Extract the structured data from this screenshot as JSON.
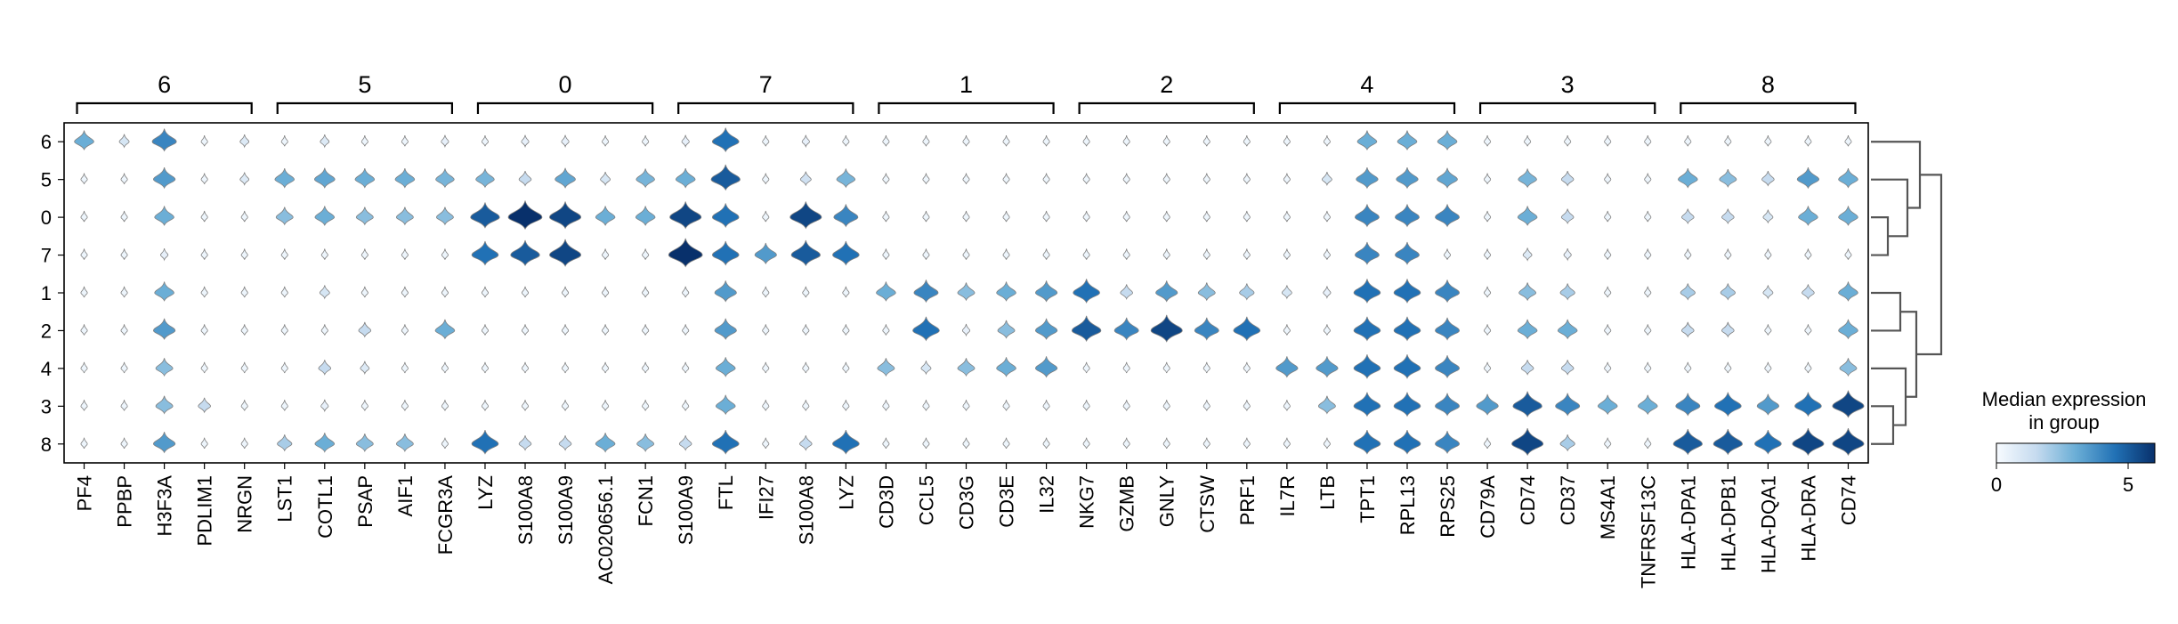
{
  "chart_data": {
    "type": "stacked-violin",
    "gene_groups": [
      {
        "name": "6",
        "genes": [
          "PF4",
          "PPBP",
          "H3F3A",
          "PDLIM1",
          "NRGN"
        ]
      },
      {
        "name": "5",
        "genes": [
          "LST1",
          "COTL1",
          "PSAP",
          "AIF1",
          "FCGR3A"
        ]
      },
      {
        "name": "0",
        "genes": [
          "LYZ",
          "S100A8",
          "S100A9",
          "AC020656.1",
          "FCN1"
        ]
      },
      {
        "name": "7",
        "genes": [
          "S100A9",
          "FTL",
          "IFI27",
          "S100A8",
          "LYZ"
        ]
      },
      {
        "name": "1",
        "genes": [
          "CD3D",
          "CCL5",
          "CD3G",
          "CD3E",
          "IL32"
        ]
      },
      {
        "name": "2",
        "genes": [
          "NKG7",
          "GZMB",
          "GNLY",
          "CTSW",
          "PRF1"
        ]
      },
      {
        "name": "4",
        "genes": [
          "IL7R",
          "LTB",
          "TPT1",
          "RPL13",
          "RPS25"
        ]
      },
      {
        "name": "3",
        "genes": [
          "CD79A",
          "CD74",
          "CD37",
          "MS4A1",
          "TNFRSF13C"
        ]
      },
      {
        "name": "8",
        "genes": [
          "HLA-DPA1",
          "HLA-DPB1",
          "HLA-DQA1",
          "HLA-DRA",
          "CD74"
        ]
      }
    ],
    "clusters": [
      "6",
      "5",
      "0",
      "7",
      "1",
      "2",
      "4",
      "3",
      "8"
    ],
    "median_expression": [
      [
        3.0,
        1.0,
        4.0,
        0.3,
        0.8,
        0.3,
        0.8,
        0.3,
        0.3,
        0.5,
        0.3,
        0.5,
        0.5,
        0.3,
        0.3,
        0.5,
        4.5,
        0.3,
        0.5,
        0.3,
        0.3,
        0.3,
        0.3,
        0.3,
        0.3,
        0.3,
        0.3,
        0.3,
        0.3,
        0.3,
        0.3,
        0.3,
        3.0,
        3.0,
        3.0,
        0.3,
        0.3,
        0.3,
        0.3,
        0.3,
        0.3,
        0.3,
        0.3,
        0.3,
        0.3
      ],
      [
        0.3,
        0.3,
        3.5,
        0.3,
        0.8,
        3.0,
        3.2,
        3.0,
        3.0,
        2.8,
        2.8,
        1.5,
        3.2,
        1.0,
        2.8,
        3.0,
        5.0,
        0.3,
        1.2,
        2.8,
        0.3,
        0.3,
        0.3,
        0.3,
        0.3,
        0.3,
        0.3,
        0.3,
        0.3,
        0.3,
        0.3,
        1.0,
        3.5,
        3.5,
        3.2,
        0.3,
        2.8,
        1.5,
        0.3,
        0.3,
        3.0,
        2.5,
        1.5,
        3.5,
        3.0
      ],
      [
        0.3,
        0.3,
        3.0,
        0.3,
        0.3,
        2.5,
        3.0,
        2.5,
        2.5,
        2.5,
        5.0,
        6.0,
        5.5,
        3.0,
        3.0,
        5.5,
        4.5,
        0.3,
        5.5,
        4.0,
        0.3,
        0.3,
        0.3,
        0.3,
        0.3,
        0.3,
        0.3,
        0.3,
        0.3,
        0.3,
        0.3,
        0.3,
        4.0,
        4.0,
        4.0,
        0.3,
        3.0,
        1.5,
        0.3,
        0.3,
        1.5,
        1.5,
        1.0,
        3.0,
        3.0
      ],
      [
        0.3,
        0.3,
        0.5,
        0.3,
        0.3,
        0.3,
        0.3,
        0.3,
        0.3,
        0.3,
        4.5,
        5.0,
        5.5,
        0.3,
        0.3,
        6.0,
        4.5,
        3.5,
        5.0,
        4.5,
        0.3,
        0.3,
        0.3,
        0.3,
        0.3,
        0.3,
        0.3,
        0.3,
        0.3,
        0.3,
        0.3,
        0.3,
        4.0,
        4.0,
        0.3,
        0.3,
        0.8,
        0.5,
        0.3,
        0.3,
        0.3,
        0.3,
        0.3,
        0.3,
        0.3
      ],
      [
        0.3,
        0.3,
        3.0,
        0.3,
        0.3,
        0.3,
        1.0,
        0.3,
        0.3,
        0.3,
        0.3,
        0.3,
        0.3,
        0.3,
        0.3,
        0.3,
        3.5,
        0.3,
        0.3,
        0.3,
        3.0,
        4.0,
        2.5,
        3.0,
        3.5,
        4.5,
        1.5,
        3.5,
        2.5,
        2.0,
        1.0,
        0.5,
        4.5,
        4.5,
        4.0,
        0.3,
        2.5,
        2.0,
        0.3,
        0.3,
        2.0,
        2.0,
        1.0,
        1.5,
        3.0
      ],
      [
        0.3,
        0.3,
        3.5,
        0.3,
        0.3,
        0.3,
        0.3,
        1.5,
        0.3,
        3.0,
        0.3,
        0.3,
        0.3,
        0.3,
        0.3,
        0.3,
        3.5,
        0.3,
        0.3,
        0.3,
        0.3,
        4.5,
        0.5,
        2.5,
        3.5,
        5.0,
        4.0,
        5.5,
        4.0,
        4.5,
        0.3,
        0.3,
        4.5,
        4.5,
        4.0,
        0.3,
        3.0,
        3.0,
        0.3,
        0.3,
        1.5,
        1.5,
        0.3,
        0.3,
        3.0
      ],
      [
        0.3,
        0.3,
        2.5,
        0.3,
        0.3,
        0.3,
        1.5,
        0.8,
        0.3,
        0.3,
        0.3,
        0.3,
        0.3,
        0.3,
        0.3,
        0.3,
        3.0,
        0.3,
        0.3,
        0.3,
        2.5,
        1.0,
        2.5,
        3.0,
        3.5,
        0.3,
        0.3,
        0.3,
        0.3,
        0.3,
        3.5,
        3.5,
        4.5,
        4.5,
        4.0,
        0.3,
        1.5,
        1.5,
        0.3,
        0.3,
        0.3,
        0.3,
        0.3,
        0.3,
        2.5
      ],
      [
        0.3,
        0.3,
        2.5,
        1.5,
        0.3,
        0.3,
        0.5,
        0.3,
        0.3,
        0.3,
        0.3,
        0.3,
        0.3,
        0.3,
        0.3,
        0.3,
        3.0,
        0.3,
        0.3,
        0.3,
        0.3,
        0.3,
        0.3,
        0.3,
        0.3,
        0.3,
        0.3,
        0.3,
        0.3,
        0.3,
        0.3,
        2.5,
        4.5,
        4.5,
        4.0,
        3.5,
        5.0,
        4.0,
        3.0,
        3.0,
        4.0,
        4.5,
        3.5,
        4.5,
        5.5
      ],
      [
        0.3,
        0.3,
        3.5,
        0.3,
        0.3,
        2.0,
        3.0,
        2.5,
        2.5,
        0.3,
        4.5,
        1.5,
        1.5,
        3.0,
        2.5,
        1.5,
        4.5,
        0.3,
        1.5,
        4.5,
        0.3,
        0.3,
        0.3,
        0.3,
        0.3,
        0.3,
        0.3,
        0.3,
        0.3,
        0.3,
        0.3,
        0.3,
        4.5,
        4.5,
        4.0,
        0.3,
        5.5,
        2.0,
        0.3,
        0.3,
        5.0,
        5.0,
        4.5,
        5.5,
        5.5
      ]
    ],
    "colorbar": {
      "title_line1": "Median expression",
      "title_line2": "in group",
      "ticks": [
        "0",
        "5"
      ],
      "range": [
        0,
        6
      ]
    },
    "colors": {
      "low": "#f7fbff",
      "high": "#08306b",
      "outline": "#808080",
      "frame": "#000000",
      "dendrogram": "#555555"
    }
  }
}
